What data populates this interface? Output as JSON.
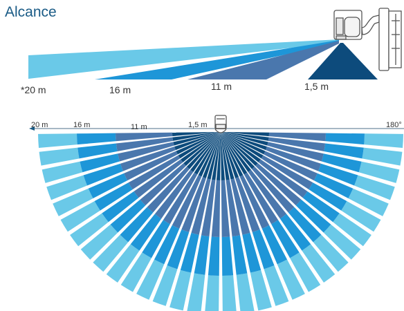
{
  "title": "Alcance",
  "colors": {
    "range_20m": "#6ac9e8",
    "range_16m": "#1e96d8",
    "range_11m": "#4a77ad",
    "range_1_5m": "#0d4b7c",
    "text_title": "#1a5b86",
    "text_label": "#333333"
  },
  "side_view": {
    "labels": [
      "*20 m",
      "16 m",
      "11 m",
      "1,5 m"
    ]
  },
  "top_view": {
    "scale_labels": [
      "20 m",
      "16 m",
      "11 m",
      "1,5 m"
    ],
    "angle_label": "180°"
  },
  "icons": {
    "sensor_side": "motion-sensor-side-icon",
    "sensor_top": "motion-sensor-top-icon"
  }
}
